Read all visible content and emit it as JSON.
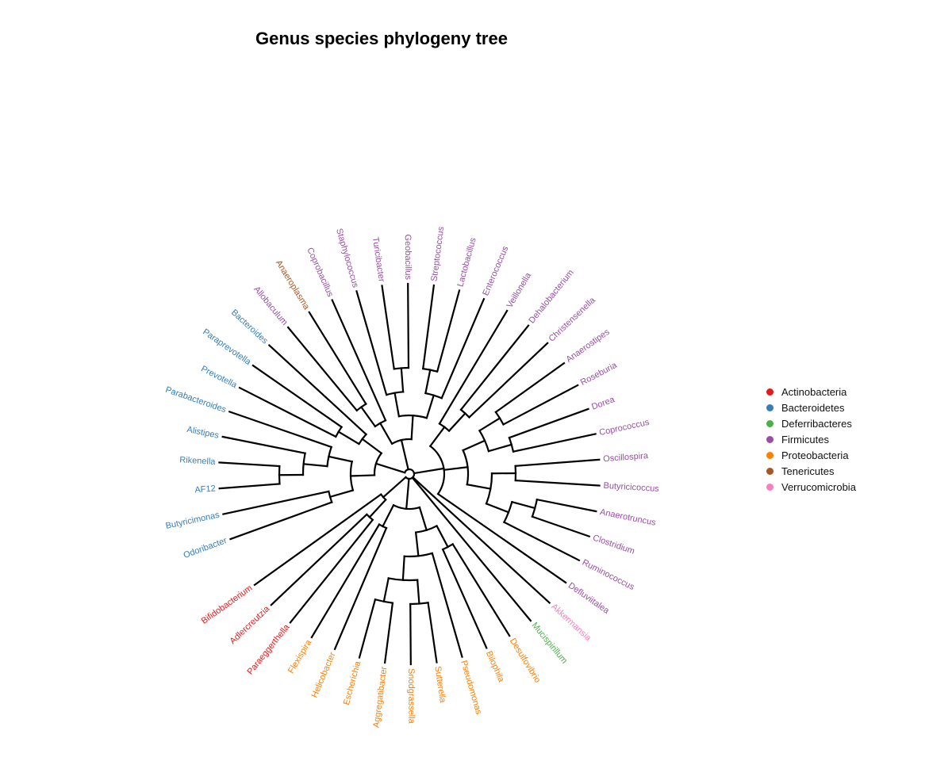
{
  "title": "Genus species phylogeny tree",
  "phyla": [
    {
      "key": "Actinobacteria",
      "label": "Actinobacteria",
      "color": "#e41a1c"
    },
    {
      "key": "Bacteroidetes",
      "label": "Bacteroidetes",
      "color": "#377eb8"
    },
    {
      "key": "Deferribacteres",
      "label": "Deferribacteres",
      "color": "#4daf4a"
    },
    {
      "key": "Firmicutes",
      "label": "Firmicutes",
      "color": "#984ea3"
    },
    {
      "key": "Proteobacteria",
      "label": "Proteobacteria",
      "color": "#ff7f00"
    },
    {
      "key": "Tenericutes",
      "label": "Tenericutes",
      "color": "#a65628"
    },
    {
      "key": "Verrucomicrobia",
      "label": "Verrucomicrobia",
      "color": "#f781bf"
    }
  ],
  "tree": {
    "children": [
      {
        "children": [
          {
            "children": [
              {
                "children": [
                  {
                    "name": "Odoribacter",
                    "phylum": "Bacteroidetes"
                  },
                  {
                    "name": "Butyricimonas",
                    "phylum": "Bacteroidetes"
                  }
                ]
              },
              {
                "children": [
                  {
                    "children": [
                      {
                        "children": [
                          {
                            "name": "AF12",
                            "phylum": "Bacteroidetes"
                          },
                          {
                            "name": "Rikenella",
                            "phylum": "Bacteroidetes"
                          }
                        ]
                      },
                      {
                        "name": "Alistipes",
                        "phylum": "Bacteroidetes"
                      }
                    ]
                  },
                  {
                    "name": "Parabacteroides",
                    "phylum": "Bacteroidetes"
                  }
                ]
              }
            ]
          },
          {
            "children": [
              {
                "children": [
                  {
                    "name": "Prevotella",
                    "phylum": "Bacteroidetes"
                  },
                  {
                    "name": "Paraprevotella",
                    "phylum": "Bacteroidetes"
                  }
                ]
              },
              {
                "name": "Bacteroides",
                "phylum": "Bacteroidetes"
              }
            ]
          }
        ]
      },
      {
        "children": [
          {
            "children": [
              {
                "children": [
                  {
                    "name": "Allobaculum",
                    "phylum": "Firmicutes"
                  },
                  {
                    "name": "Anaeroplasma",
                    "phylum": "Tenericutes"
                  }
                ]
              },
              {
                "name": "Coprobacillus",
                "phylum": "Firmicutes"
              }
            ]
          },
          {
            "children": [
              {
                "children": [
                  {
                    "name": "Staphylococcus",
                    "phylum": "Firmicutes"
                  },
                  {
                    "children": [
                      {
                        "name": "Turicibacter",
                        "phylum": "Firmicutes"
                      },
                      {
                        "name": "Geobacillus",
                        "phylum": "Firmicutes"
                      }
                    ]
                  }
                ]
              },
              {
                "children": [
                  {
                    "children": [
                      {
                        "name": "Streptococcus",
                        "phylum": "Firmicutes"
                      },
                      {
                        "name": "Lactobacillus",
                        "phylum": "Firmicutes"
                      }
                    ]
                  },
                  {
                    "name": "Enterococcus",
                    "phylum": "Firmicutes"
                  }
                ]
              }
            ]
          }
        ]
      },
      {
        "children": [
          {
            "children": [
              {
                "name": "Veillonella",
                "phylum": "Firmicutes"
              },
              {
                "children": [
                  {
                    "name": "Dehalobacterium",
                    "phylum": "Firmicutes"
                  },
                  {
                    "name": "Christensenella",
                    "phylum": "Firmicutes"
                  }
                ]
              }
            ]
          },
          {
            "children": [
              {
                "children": [
                  {
                    "children": [
                      {
                        "name": "Anaerostipes",
                        "phylum": "Firmicutes"
                      },
                      {
                        "name": "Roseburia",
                        "phylum": "Firmicutes"
                      }
                    ]
                  },
                  {
                    "children": [
                      {
                        "name": "Dorea",
                        "phylum": "Firmicutes"
                      },
                      {
                        "name": "Coprococcus",
                        "phylum": "Firmicutes"
                      }
                    ]
                  }
                ]
              },
              {
                "children": [
                  {
                    "children": [
                      {
                        "name": "Oscillospira",
                        "phylum": "Firmicutes"
                      },
                      {
                        "name": "Butyricicoccus",
                        "phylum": "Firmicutes"
                      }
                    ]
                  },
                  {
                    "children": [
                      {
                        "children": [
                          {
                            "name": "Anaerotruncus",
                            "phylum": "Firmicutes"
                          },
                          {
                            "name": "Clostridium",
                            "phylum": "Firmicutes"
                          }
                        ]
                      },
                      {
                        "name": "Ruminococcus",
                        "phylum": "Firmicutes"
                      }
                    ]
                  }
                ]
              }
            ]
          },
          {
            "name": "Defluviitalea",
            "phylum": "Firmicutes"
          }
        ]
      },
      {
        "name": "Akkermansia",
        "phylum": "Verrucomicrobia"
      },
      {
        "name": "Mucispirillum",
        "phylum": "Deferribacteres"
      },
      {
        "children": [
          {
            "children": [
              {
                "children": [
                  {
                    "name": "Desulfovibrio",
                    "phylum": "Proteobacteria"
                  },
                  {
                    "name": "Bilophila",
                    "phylum": "Proteobacteria"
                  }
                ]
              },
              {
                "children": [
                  {
                    "name": "Pseudomonas",
                    "phylum": "Proteobacteria"
                  },
                  {
                    "children": [
                      {
                        "children": [
                          {
                            "name": "Sutterella",
                            "phylum": "Proteobacteria"
                          },
                          {
                            "name": "Snodgrassella",
                            "phylum": "Proteobacteria"
                          }
                        ]
                      },
                      {
                        "children": [
                          {
                            "name": "Aggregatibacter",
                            "phylum": "Proteobacteria"
                          },
                          {
                            "name": "Escherichia",
                            "phylum": "Proteobacteria"
                          }
                        ]
                      }
                    ]
                  }
                ]
              }
            ]
          },
          {
            "children": [
              {
                "name": "Helicobacter",
                "phylum": "Proteobacteria"
              },
              {
                "name": "Flexispira",
                "phylum": "Proteobacteria"
              }
            ]
          }
        ]
      },
      {
        "children": [
          {
            "children": [
              {
                "name": "Paraeggerthella",
                "phylum": "Actinobacteria"
              },
              {
                "name": "Adlercreutzia",
                "phylum": "Actinobacteria"
              }
            ]
          },
          {
            "name": "Bifidobacterium",
            "phylum": "Actinobacteria"
          }
        ]
      }
    ]
  }
}
